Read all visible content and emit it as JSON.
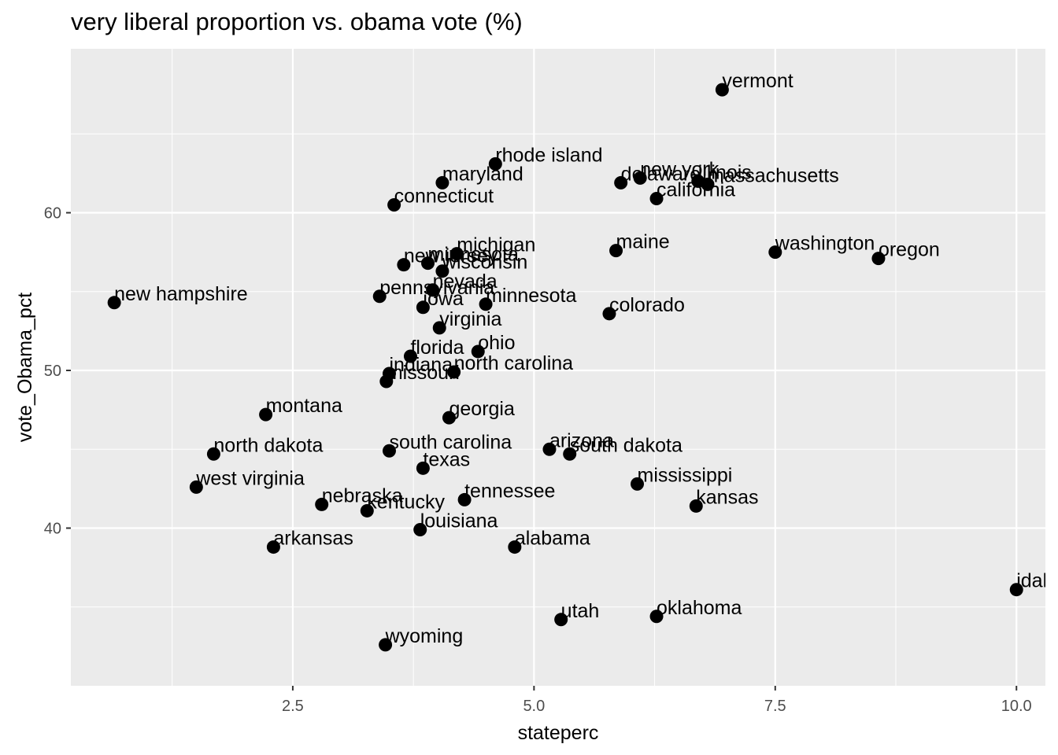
{
  "chart_data": {
    "type": "scatter",
    "title": "very liberal proportion vs. obama vote (%)",
    "xlabel": "stateperc",
    "ylabel": "vote_Obama_pct",
    "xlim": [
      0.2,
      10.3
    ],
    "ylim": [
      30,
      70.4
    ],
    "x_ticks": [
      2.5,
      5.0,
      7.5,
      10.0
    ],
    "x_tick_labels": [
      "2.5",
      "5.0",
      "7.5",
      "10.0"
    ],
    "y_ticks": [
      40,
      50,
      60
    ],
    "y_tick_labels": [
      "40",
      "50",
      "60"
    ],
    "grid": true,
    "colors": {
      "panel": "#ebebeb",
      "grid": "#ffffff",
      "point": "#000000"
    },
    "points": [
      {
        "label": "vermont",
        "x": 6.95,
        "y": 67.8
      },
      {
        "label": "rhode island",
        "x": 4.6,
        "y": 63.1
      },
      {
        "label": "maryland",
        "x": 4.05,
        "y": 61.9
      },
      {
        "label": "delaware",
        "x": 5.9,
        "y": 61.9
      },
      {
        "label": "new york",
        "x": 6.1,
        "y": 62.2
      },
      {
        "label": "illinois",
        "x": 6.7,
        "y": 62.0
      },
      {
        "label": "massachusetts",
        "x": 6.8,
        "y": 61.8
      },
      {
        "label": "california",
        "x": 6.27,
        "y": 60.9
      },
      {
        "label": "connecticut",
        "x": 3.55,
        "y": 60.5
      },
      {
        "label": "michigan",
        "x": 4.2,
        "y": 57.4
      },
      {
        "label": "new jersey",
        "x": 3.65,
        "y": 56.7
      },
      {
        "label": "minnesota",
        "x": 3.9,
        "y": 56.8
      },
      {
        "label": "wisconsin",
        "x": 4.05,
        "y": 56.3
      },
      {
        "label": "maine",
        "x": 5.85,
        "y": 57.6
      },
      {
        "label": "washington",
        "x": 7.5,
        "y": 57.5
      },
      {
        "label": "oregon",
        "x": 8.57,
        "y": 57.1
      },
      {
        "label": "new hampshire",
        "x": 0.65,
        "y": 54.3
      },
      {
        "label": "pennsylvania",
        "x": 3.4,
        "y": 54.7
      },
      {
        "label": "nevada",
        "x": 3.95,
        "y": 55.1
      },
      {
        "label": "iowa",
        "x": 3.85,
        "y": 54.0
      },
      {
        "label": "minnesota",
        "x": 4.5,
        "y": 54.2
      },
      {
        "label": "colorado",
        "x": 5.78,
        "y": 53.6
      },
      {
        "label": "virginia",
        "x": 4.02,
        "y": 52.7
      },
      {
        "label": "ohio",
        "x": 4.42,
        "y": 51.2
      },
      {
        "label": "florida",
        "x": 3.72,
        "y": 50.9
      },
      {
        "label": "indiana",
        "x": 3.5,
        "y": 49.8
      },
      {
        "label": "north carolina",
        "x": 4.17,
        "y": 49.9
      },
      {
        "label": "missouri",
        "x": 3.47,
        "y": 49.3
      },
      {
        "label": "montana",
        "x": 2.22,
        "y": 47.2
      },
      {
        "label": "georgia",
        "x": 4.12,
        "y": 47.0
      },
      {
        "label": "north dakota",
        "x": 1.68,
        "y": 44.7
      },
      {
        "label": "south carolina",
        "x": 3.5,
        "y": 44.9
      },
      {
        "label": "arizona",
        "x": 5.16,
        "y": 45.0
      },
      {
        "label": "south dakota",
        "x": 5.37,
        "y": 44.7
      },
      {
        "label": "texas",
        "x": 3.85,
        "y": 43.8
      },
      {
        "label": "west virginia",
        "x": 1.5,
        "y": 42.6
      },
      {
        "label": "mississippi",
        "x": 6.07,
        "y": 42.8
      },
      {
        "label": "nebraska",
        "x": 2.8,
        "y": 41.5
      },
      {
        "label": "kentucky",
        "x": 3.27,
        "y": 41.1
      },
      {
        "label": "tennessee",
        "x": 4.28,
        "y": 41.8
      },
      {
        "label": "kansas",
        "x": 6.68,
        "y": 41.4
      },
      {
        "label": "louisiana",
        "x": 3.82,
        "y": 39.9
      },
      {
        "label": "arkansas",
        "x": 2.3,
        "y": 38.8
      },
      {
        "label": "alabama",
        "x": 4.8,
        "y": 38.8
      },
      {
        "label": "idaho",
        "x": 10.0,
        "y": 36.1
      },
      {
        "label": "utah",
        "x": 5.28,
        "y": 34.2
      },
      {
        "label": "oklahoma",
        "x": 6.27,
        "y": 34.4
      },
      {
        "label": "wyoming",
        "x": 3.46,
        "y": 32.6
      }
    ]
  }
}
